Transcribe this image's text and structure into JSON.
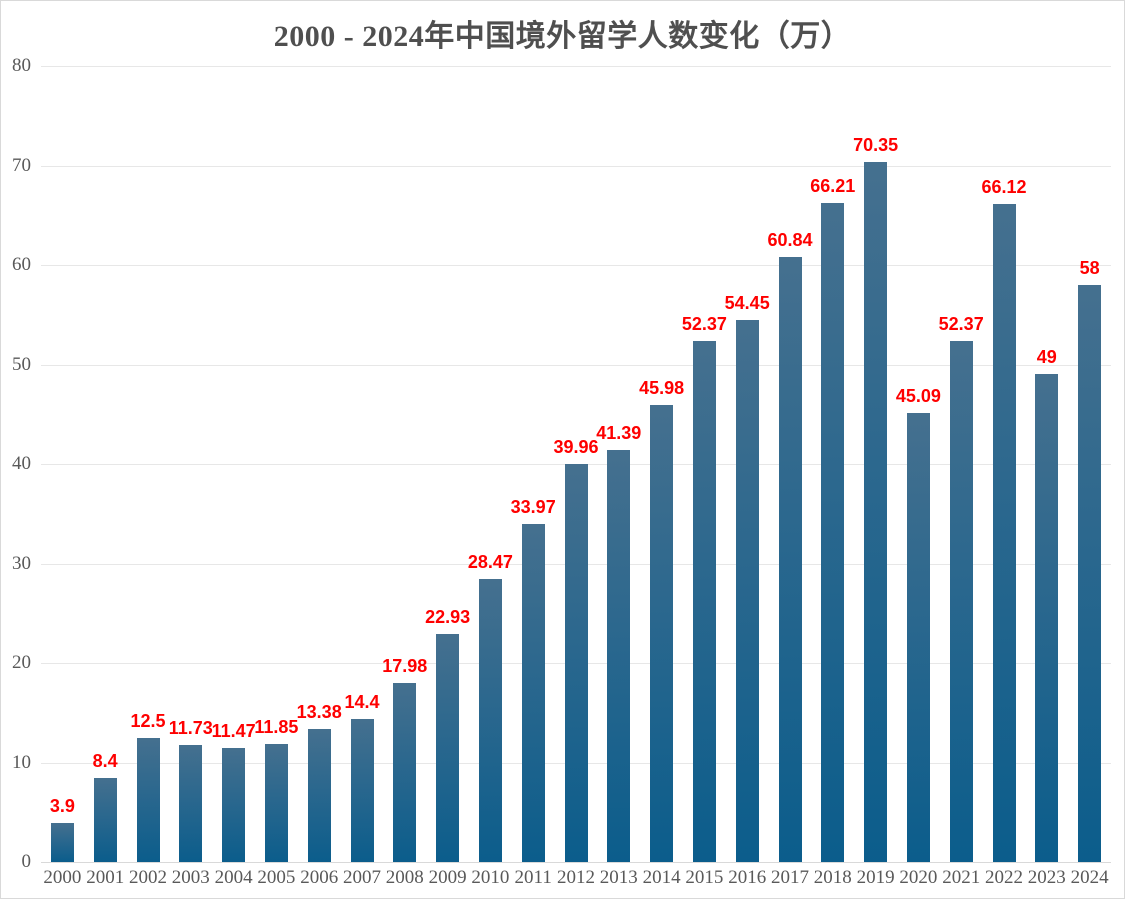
{
  "chart_data": {
    "type": "bar",
    "title": "2000 - 2024年中国境外留学人数变化（万）",
    "categories": [
      "2000",
      "2001",
      "2002",
      "2003",
      "2004",
      "2005",
      "2006",
      "2007",
      "2008",
      "2009",
      "2010",
      "2011",
      "2012",
      "2013",
      "2014",
      "2015",
      "2016",
      "2017",
      "2018",
      "2019",
      "2020",
      "2021",
      "2022",
      "2023",
      "2024"
    ],
    "values": [
      3.9,
      8.4,
      12.5,
      11.73,
      11.47,
      11.85,
      13.38,
      14.4,
      17.98,
      22.93,
      28.47,
      33.97,
      39.96,
      41.39,
      45.98,
      52.37,
      54.45,
      60.84,
      66.21,
      70.35,
      45.09,
      52.37,
      66.12,
      49,
      58
    ],
    "value_labels": [
      "3.9",
      "8.4",
      "12.5",
      "11.73",
      "11.47",
      "11.85",
      "13.38",
      "14.4",
      "17.98",
      "22.93",
      "28.47",
      "33.97",
      "39.96",
      "41.39",
      "45.98",
      "52.37",
      "54.45",
      "60.84",
      "66.21",
      "70.35",
      "45.09",
      "52.37",
      "66.12",
      "49",
      "58"
    ],
    "xlabel": "",
    "ylabel": "",
    "ylim": [
      0,
      80
    ],
    "yticks": [
      0,
      10,
      20,
      30,
      40,
      50,
      60,
      70,
      80
    ],
    "grid": true,
    "legend_position": "none",
    "colors": {
      "bar_gradient_top": "#45708f",
      "bar_gradient_bottom": "#0b5d8c",
      "value_label": "#fe0000",
      "axis_text": "#595959",
      "title_text": "#4f4f4f",
      "gridline": "#e7e7e7",
      "axis_line": "#d9d9d9",
      "background": "#ffffff",
      "border": "#d9d9d9"
    }
  }
}
